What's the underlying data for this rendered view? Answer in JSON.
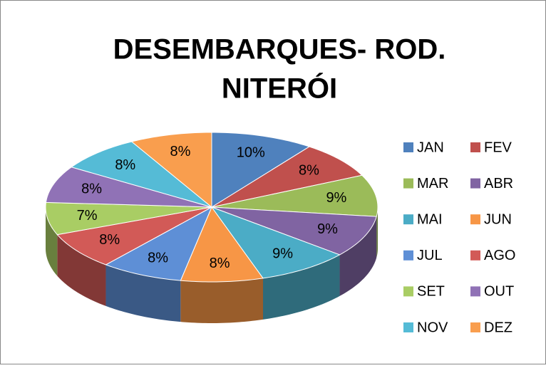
{
  "chart_data": {
    "type": "pie3d",
    "title": [
      "DESEMBARQUES- ROD.",
      "NITERÓI"
    ],
    "categories": [
      "JAN",
      "FEV",
      "MAR",
      "ABR",
      "MAI",
      "JUN",
      "JUL",
      "AGO",
      "SET",
      "OUT",
      "NOV",
      "DEZ"
    ],
    "values": [
      10,
      8,
      9,
      9,
      9,
      8,
      8,
      8,
      7,
      8,
      8,
      8
    ],
    "value_labels": [
      "10%",
      "8%",
      "9%",
      "9%",
      "9%",
      "8%",
      "8%",
      "8%",
      "7%",
      "8%",
      "8%",
      "8%"
    ],
    "colors": [
      "#4f81bd",
      "#c0504d",
      "#9bbb59",
      "#8064a2",
      "#4bacc6",
      "#f79646",
      "#5e8fd6",
      "#d25a57",
      "#a9cd64",
      "#9072b6",
      "#55bbd6",
      "#f99e4e"
    ],
    "legend": "right"
  }
}
